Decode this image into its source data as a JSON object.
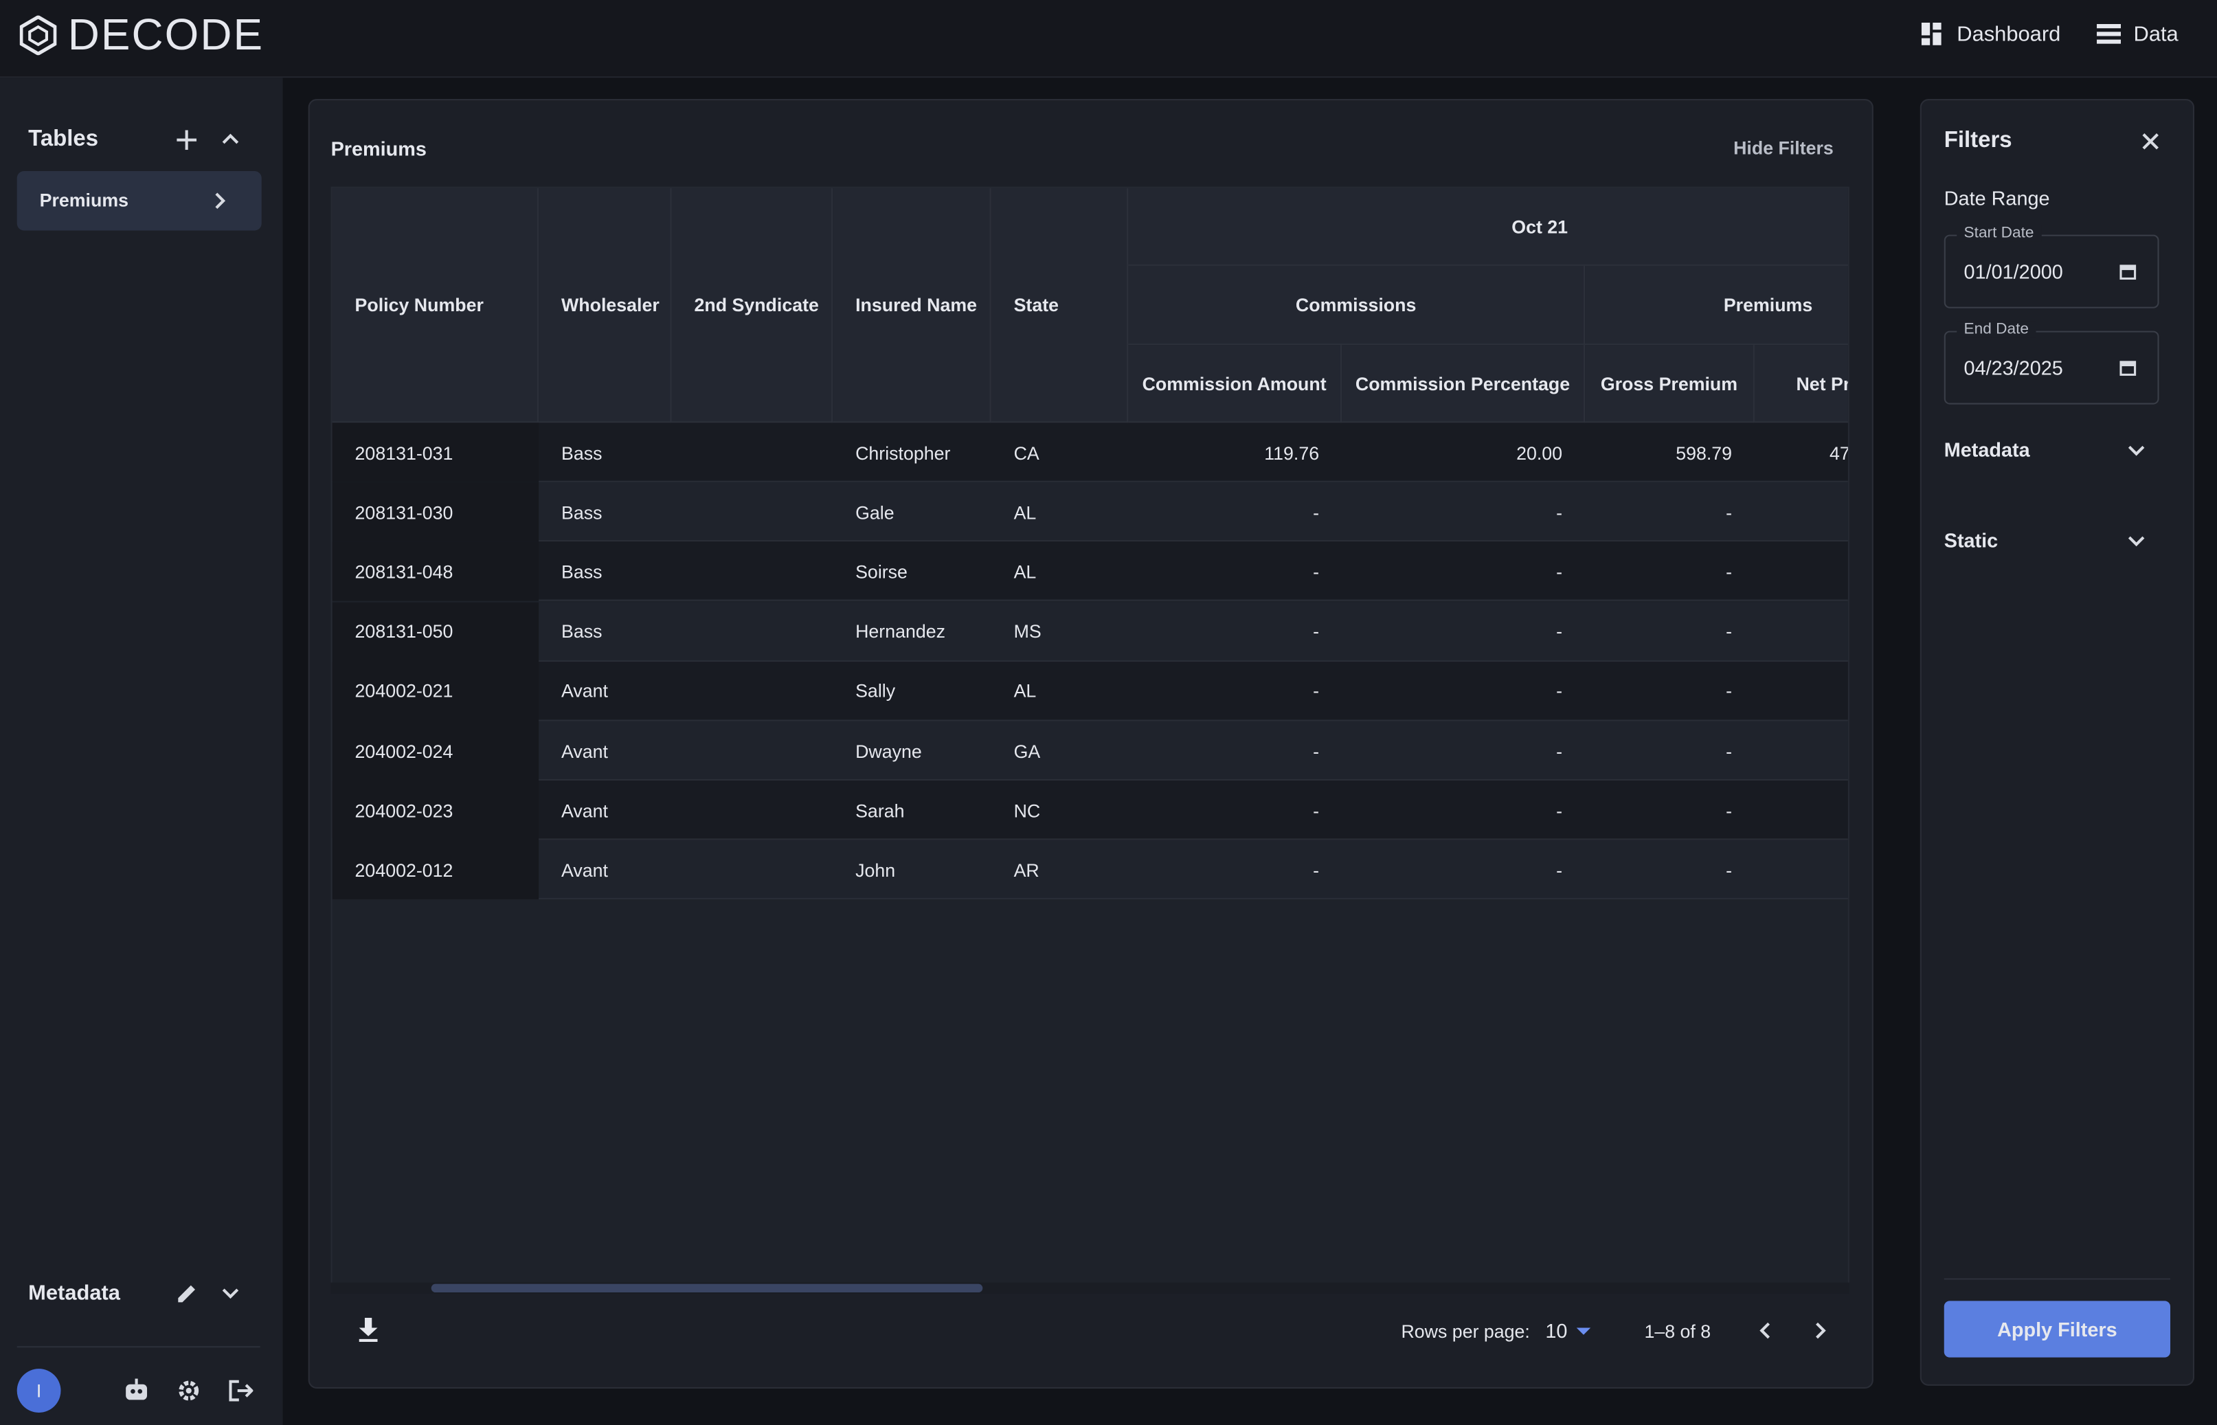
{
  "header": {
    "brand": "DECODE",
    "nav": [
      "Dashboard",
      "Data"
    ]
  },
  "sidebar": {
    "tables_title": "Tables",
    "tables": [
      "Premiums"
    ],
    "metadata_title": "Metadata",
    "avatar": "I"
  },
  "main": {
    "title": "Premiums",
    "hide_filters": "Hide Filters",
    "table": {
      "columns": [
        "Policy Number",
        "Wholesaler",
        "2nd Syndicate",
        "Insured Name",
        "State"
      ],
      "group": "Oct 21",
      "subgroups": [
        {
          "label": "Commissions",
          "columns": [
            "Commission Amount",
            "Commission Percentage"
          ]
        },
        {
          "label": "Premiums",
          "columns": [
            "Gross Premium",
            "Net Premium"
          ]
        }
      ],
      "rows": [
        [
          "208131-031",
          "Bass",
          "",
          "Christopher",
          "CA",
          "119.76",
          "20.00",
          "598.79",
          "47"
        ],
        [
          "208131-030",
          "Bass",
          "",
          "Gale",
          "AL",
          "-",
          "-",
          "-"
        ],
        [
          "208131-048",
          "Bass",
          "",
          "Soirse",
          "AL",
          "-",
          "-",
          "-"
        ],
        [
          "208131-050",
          "Bass",
          "",
          "Hernandez",
          "MS",
          "-",
          "-",
          "-"
        ],
        [
          "204002-021",
          "Avant",
          "",
          "Sally",
          "AL",
          "-",
          "-",
          "-"
        ],
        [
          "204002-024",
          "Avant",
          "",
          "Dwayne",
          "GA",
          "-",
          "-",
          "-"
        ],
        [
          "204002-023",
          "Avant",
          "",
          "Sarah",
          "NC",
          "-",
          "-",
          "-"
        ],
        [
          "204002-012",
          "Avant",
          "",
          "John",
          "AR",
          "-",
          "-",
          "-"
        ]
      ]
    },
    "pagination": {
      "rows_per_page_label": "Rows per page:",
      "rows_per_page": "10",
      "range": "1–8 of 8"
    }
  },
  "filters": {
    "title": "Filters",
    "date_range": "Date Range",
    "start_label": "Start Date",
    "start_value": "01/01/2000",
    "end_label": "End Date",
    "end_value": "04/23/2025",
    "sections": [
      "Metadata",
      "Static"
    ],
    "apply": "Apply Filters"
  }
}
